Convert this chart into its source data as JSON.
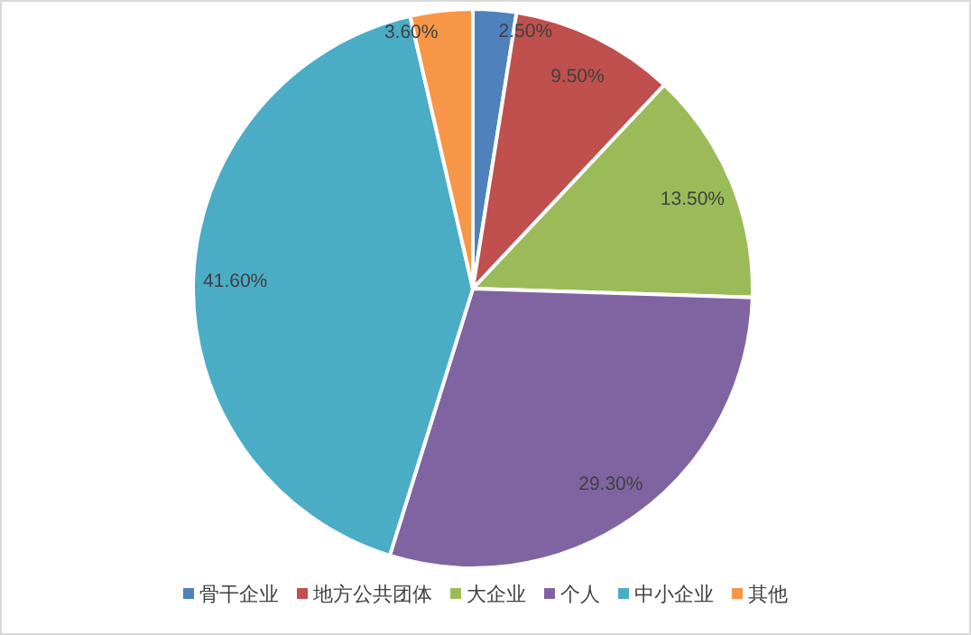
{
  "chart_data": {
    "type": "pie",
    "categories": [
      "骨干企业",
      "地方公共团体",
      "大企业",
      "个人",
      "中小企业",
      "其他"
    ],
    "values": [
      2.5,
      9.5,
      13.5,
      29.3,
      41.6,
      3.6
    ],
    "value_labels": [
      "2.50%",
      "9.50%",
      "13.50%",
      "29.30%",
      "41.60%",
      "3.60%"
    ],
    "colors": [
      "#4f81bd",
      "#c0504d",
      "#9bbb59",
      "#8064a2",
      "#4bacc6",
      "#f79646"
    ],
    "legend": "bottom"
  }
}
